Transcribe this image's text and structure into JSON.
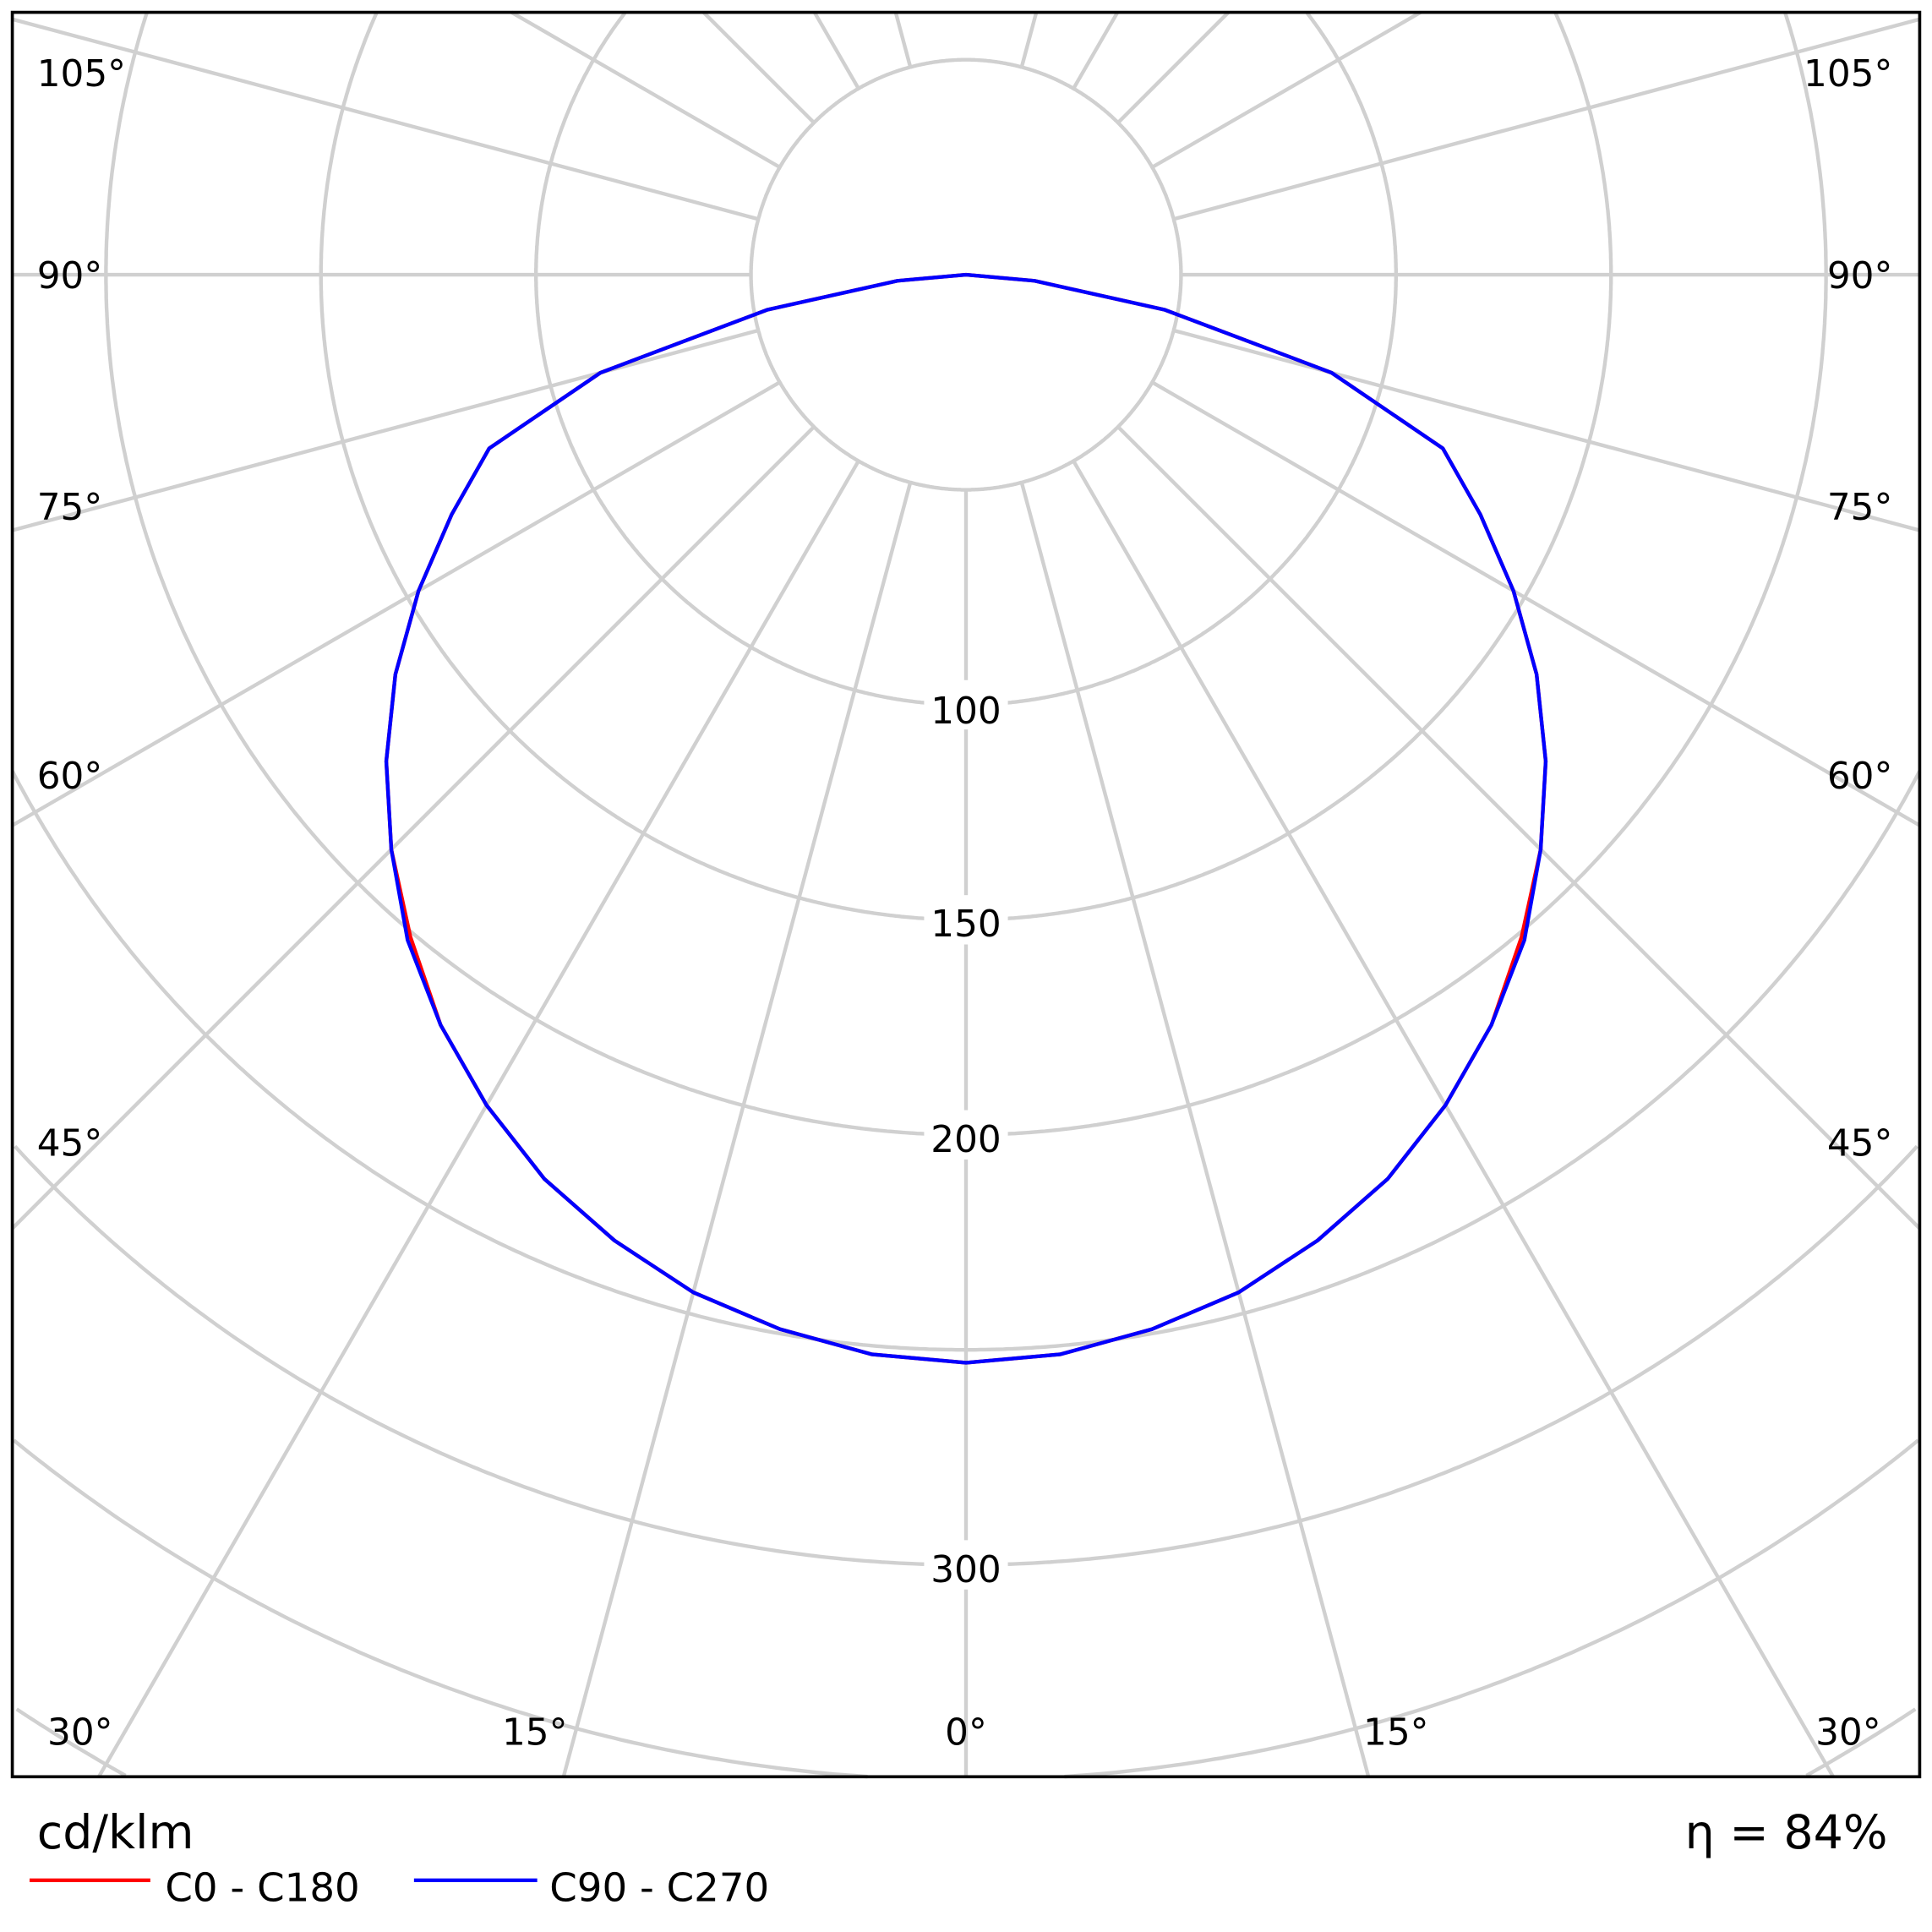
{
  "chart_data": {
    "type": "polar",
    "unit_label": "cd/klm",
    "efficiency_label": "η = 84%",
    "radial_ticks": [
      100,
      150,
      200,
      300
    ],
    "radial_grid": [
      50,
      100,
      150,
      200,
      250,
      300,
      350,
      400,
      450,
      500
    ],
    "angle_labels": {
      "side": [
        "105°",
        "90°",
        "75°",
        "60°",
        "45°"
      ],
      "bottom": [
        "30°",
        "15°",
        "0°",
        "15°",
        "30°"
      ]
    },
    "angles": [
      0,
      5,
      10,
      15,
      20,
      25,
      30,
      35,
      40,
      45,
      50,
      55,
      60,
      65,
      70,
      75,
      80,
      85,
      90
    ],
    "series": [
      {
        "name": "C0 - C180",
        "color": "#ff0000",
        "values": [
          253,
          252,
          249,
          245,
          239,
          232,
          223,
          213,
          201,
          189,
          176,
          162,
          147,
          132,
          118,
          88,
          47,
          16,
          0
        ]
      },
      {
        "name": "C90 - C270",
        "color": "#0000ff",
        "values": [
          253,
          252,
          249,
          245,
          239,
          232,
          223,
          213,
          202,
          189,
          176,
          162,
          147,
          132,
          118,
          88,
          47,
          16,
          0
        ]
      }
    ],
    "grid": true,
    "legend_position": "bottom-left"
  }
}
